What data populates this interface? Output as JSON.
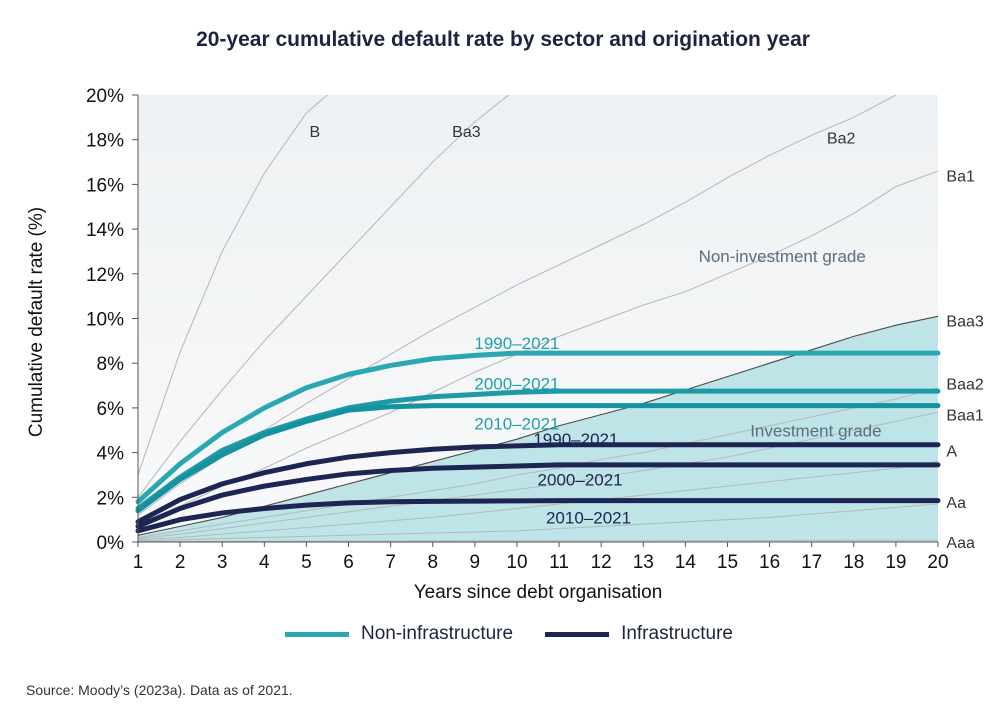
{
  "chart_data": {
    "type": "line",
    "title": "20-year cumulative default rate by sector and origination year",
    "xlabel": "Years since debt organisation",
    "ylabel": "Cumulative default rate (%)",
    "xlim": [
      1,
      20
    ],
    "ylim": [
      0,
      20
    ],
    "x_ticks": [
      "1",
      "2",
      "3",
      "4",
      "5",
      "6",
      "7",
      "8",
      "9",
      "10",
      "11",
      "12",
      "13",
      "14",
      "15",
      "16",
      "17",
      "18",
      "19",
      "20"
    ],
    "y_ticks": [
      "0%",
      "2%",
      "4%",
      "6%",
      "8%",
      "10%",
      "12%",
      "14%",
      "16%",
      "18%",
      "20%"
    ],
    "grid": false,
    "region_labels": [
      "Non-investment grade",
      "Investment grade"
    ],
    "rating_curves": [
      {
        "name": "B",
        "x": [
          1,
          2,
          3,
          4,
          5,
          5.5
        ],
        "y": [
          3.0,
          8.5,
          13.0,
          16.5,
          19.2,
          20.0
        ],
        "label_x": 5.2,
        "label_y": 18.4
      },
      {
        "name": "Ba3",
        "x": [
          1,
          2,
          3,
          4,
          5,
          6,
          7,
          8,
          9,
          9.8
        ],
        "y": [
          2.0,
          4.5,
          6.8,
          9.0,
          11.0,
          13.0,
          15.0,
          17.0,
          18.8,
          20.0
        ],
        "label_x": 8.8,
        "label_y": 18.4
      },
      {
        "name": "Ba2",
        "x": [
          1,
          2,
          3,
          4,
          5,
          6,
          7,
          8,
          9,
          10,
          11,
          12,
          13,
          14,
          15,
          16,
          17,
          18,
          19
        ],
        "y": [
          1.2,
          2.6,
          3.8,
          5.0,
          6.2,
          7.3,
          8.4,
          9.5,
          10.5,
          11.5,
          12.4,
          13.3,
          14.2,
          15.2,
          16.3,
          17.3,
          18.2,
          19.0,
          20.0
        ],
        "label_x": 17.7,
        "label_y": 18.1
      },
      {
        "name": "Ba1",
        "x": [
          1,
          2,
          3,
          4,
          5,
          6,
          7,
          8,
          9,
          10,
          11,
          12,
          13,
          14,
          15,
          16,
          17,
          18,
          19,
          20
        ],
        "y": [
          0.8,
          1.6,
          2.5,
          3.3,
          4.2,
          5.0,
          5.8,
          6.7,
          7.6,
          8.4,
          9.2,
          9.9,
          10.6,
          11.2,
          12.0,
          12.8,
          13.7,
          14.7,
          15.9,
          16.6
        ],
        "label_x": 20.2,
        "label_y": 16.4
      },
      {
        "name": "Baa3",
        "x": [
          1,
          2,
          3,
          4,
          5,
          6,
          7,
          8,
          9,
          10,
          11,
          12,
          13,
          14,
          15,
          16,
          17,
          18,
          19,
          20
        ],
        "y": [
          0.3,
          0.7,
          1.1,
          1.6,
          2.1,
          2.6,
          3.1,
          3.6,
          4.1,
          4.6,
          5.2,
          5.7,
          6.2,
          6.8,
          7.4,
          8.0,
          8.6,
          9.2,
          9.7,
          10.1
        ],
        "label_x": 20.2,
        "label_y": 9.9
      },
      {
        "name": "Baa2",
        "x": [
          1,
          2,
          3,
          4,
          5,
          6,
          7,
          8,
          9,
          10,
          11,
          12,
          13,
          14,
          15,
          16,
          17,
          18,
          19,
          20
        ],
        "y": [
          0.2,
          0.5,
          0.8,
          1.1,
          1.4,
          1.7,
          2.0,
          2.3,
          2.6,
          3.0,
          3.3,
          3.7,
          4.0,
          4.4,
          4.8,
          5.2,
          5.6,
          6.0,
          6.4,
          6.9
        ],
        "label_x": 20.2,
        "label_y": 7.1
      },
      {
        "name": "Baa1",
        "x": [
          1,
          2,
          3,
          4,
          5,
          6,
          7,
          8,
          9,
          10,
          11,
          12,
          13,
          14,
          15,
          16,
          17,
          18,
          19,
          20
        ],
        "y": [
          0.15,
          0.35,
          0.6,
          0.85,
          1.1,
          1.35,
          1.6,
          1.85,
          2.1,
          2.35,
          2.6,
          2.9,
          3.2,
          3.5,
          3.8,
          4.2,
          4.6,
          5.0,
          5.4,
          5.8
        ],
        "label_x": 20.2,
        "label_y": 5.7
      },
      {
        "name": "A",
        "x": [
          1,
          2,
          3,
          4,
          5,
          6,
          7,
          8,
          9,
          10,
          11,
          12,
          13,
          14,
          15,
          16,
          17,
          18,
          19,
          20
        ],
        "y": [
          0.1,
          0.2,
          0.35,
          0.5,
          0.65,
          0.8,
          0.95,
          1.1,
          1.3,
          1.5,
          1.7,
          1.9,
          2.1,
          2.3,
          2.5,
          2.7,
          2.9,
          3.1,
          3.3,
          3.6
        ],
        "label_x": 20.2,
        "label_y": 4.1
      },
      {
        "name": "Aa",
        "x": [
          1,
          2,
          3,
          4,
          5,
          6,
          7,
          8,
          9,
          10,
          11,
          12,
          13,
          14,
          15,
          16,
          17,
          18,
          19,
          20
        ],
        "y": [
          0.05,
          0.1,
          0.15,
          0.2,
          0.25,
          0.3,
          0.35,
          0.4,
          0.45,
          0.5,
          0.6,
          0.7,
          0.8,
          0.9,
          1.0,
          1.1,
          1.25,
          1.4,
          1.55,
          1.7
        ],
        "label_x": 20.2,
        "label_y": 1.8
      },
      {
        "name": "Aaa",
        "x": [
          1,
          20
        ],
        "y": [
          0.02,
          0.08
        ],
        "label_x": 20.2,
        "label_y": 0.0
      }
    ],
    "series": [
      {
        "name": "1990–2021",
        "group": "Non-infrastructure",
        "color": "#2aa7b1",
        "x": [
          1,
          2,
          3,
          4,
          5,
          6,
          7,
          8,
          9,
          10,
          11,
          12,
          13,
          14,
          15,
          16,
          17,
          18,
          19,
          20
        ],
        "y": [
          1.8,
          3.5,
          4.9,
          6.0,
          6.9,
          7.5,
          7.9,
          8.2,
          8.35,
          8.45,
          8.45,
          8.45,
          8.45,
          8.45,
          8.45,
          8.45,
          8.45,
          8.45,
          8.45,
          8.45
        ],
        "label_x": 10.0,
        "label_y": 8.9
      },
      {
        "name": "2000–2021",
        "group": "Non-infrastructure",
        "color": "#1e9aa6",
        "x": [
          1,
          2,
          3,
          4,
          5,
          6,
          7,
          8,
          9,
          10,
          11,
          12,
          13,
          14,
          15,
          16,
          17,
          18,
          19,
          20
        ],
        "y": [
          1.5,
          2.9,
          4.1,
          4.9,
          5.5,
          6.0,
          6.3,
          6.5,
          6.6,
          6.7,
          6.75,
          6.75,
          6.75,
          6.75,
          6.75,
          6.75,
          6.75,
          6.75,
          6.75,
          6.75
        ],
        "label_x": 10.0,
        "label_y": 7.1
      },
      {
        "name": "2010–2021",
        "group": "Non-infrastructure",
        "color": "#15929f",
        "x": [
          1,
          2,
          3,
          4,
          5,
          6,
          7,
          8,
          9,
          10,
          11,
          12,
          13,
          14,
          15,
          16,
          17,
          18,
          19,
          20
        ],
        "y": [
          1.4,
          2.8,
          3.9,
          4.8,
          5.4,
          5.9,
          6.05,
          6.1,
          6.1,
          6.1,
          6.1,
          6.1,
          6.1,
          6.1,
          6.1,
          6.1,
          6.1,
          6.1,
          6.1,
          6.1
        ],
        "label_x": 10.0,
        "label_y": 5.3
      },
      {
        "name": "1990–2021",
        "group": "Infrastructure",
        "color": "#1d2553",
        "x": [
          1,
          2,
          3,
          4,
          5,
          6,
          7,
          8,
          9,
          10,
          11,
          12,
          13,
          14,
          15,
          16,
          17,
          18,
          19,
          20
        ],
        "y": [
          0.9,
          1.9,
          2.6,
          3.1,
          3.5,
          3.8,
          4.0,
          4.15,
          4.25,
          4.3,
          4.35,
          4.35,
          4.35,
          4.35,
          4.35,
          4.35,
          4.35,
          4.35,
          4.35,
          4.35
        ],
        "label_x": 11.4,
        "label_y": 4.6
      },
      {
        "name": "2000–2021",
        "group": "Infrastructure",
        "color": "#1d2553",
        "x": [
          1,
          2,
          3,
          4,
          5,
          6,
          7,
          8,
          9,
          10,
          11,
          12,
          13,
          14,
          15,
          16,
          17,
          18,
          19,
          20
        ],
        "y": [
          0.7,
          1.5,
          2.1,
          2.5,
          2.8,
          3.05,
          3.2,
          3.3,
          3.35,
          3.4,
          3.45,
          3.45,
          3.45,
          3.45,
          3.45,
          3.45,
          3.45,
          3.45,
          3.45,
          3.45
        ],
        "label_x": 11.5,
        "label_y": 2.8
      },
      {
        "name": "2010–2021",
        "group": "Infrastructure",
        "color": "#1d2553",
        "x": [
          1,
          2,
          3,
          4,
          5,
          6,
          7,
          8,
          9,
          10,
          11,
          12,
          13,
          14,
          15,
          16,
          17,
          18,
          19,
          20
        ],
        "y": [
          0.5,
          1.0,
          1.3,
          1.5,
          1.65,
          1.75,
          1.8,
          1.82,
          1.83,
          1.84,
          1.85,
          1.85,
          1.85,
          1.85,
          1.85,
          1.85,
          1.85,
          1.85,
          1.85,
          1.85
        ],
        "label_x": 11.7,
        "label_y": 1.1
      }
    ],
    "legend": [
      {
        "label": "Non-infrastructure",
        "color": "#2aa7b1"
      },
      {
        "label": "Infrastructure",
        "color": "#1d2553"
      }
    ],
    "legend_position": "bottom"
  },
  "source_note": "Source: Moody’s (2023a). Data as of 2021."
}
